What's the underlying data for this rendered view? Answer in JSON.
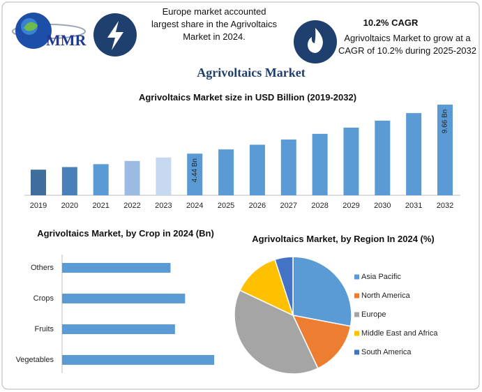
{
  "header": {
    "logo_text": "MMR",
    "info_left": "Europe market accounted largest share in the Agrivoltaics Market in 2024.",
    "info_right_title": "10.2% CAGR",
    "info_right_text": "Agrivoltaics Market to grow at a CAGR of 10.2% during 2025-2032",
    "title": "Agrivoltaics Market"
  },
  "chart_data": [
    {
      "type": "bar",
      "title": "Agrivoltaics Market size in USD Billion (2019-2032)",
      "categories": [
        "2019",
        "2020",
        "2021",
        "2022",
        "2023",
        "2024",
        "2025",
        "2026",
        "2027",
        "2028",
        "2029",
        "2030",
        "2031",
        "2032"
      ],
      "values": [
        2.73,
        3.01,
        3.32,
        3.66,
        4.03,
        4.44,
        4.89,
        5.39,
        5.94,
        6.55,
        7.21,
        7.95,
        8.76,
        9.66
      ],
      "value_labels": [
        null,
        null,
        null,
        null,
        null,
        "4.44 Bn",
        null,
        null,
        null,
        null,
        null,
        null,
        null,
        "9.66 Bn"
      ],
      "colors": [
        "#3e6e9c",
        "#4a80b9",
        "#5b9bd5",
        "#9bbbe3",
        "#c6d9f0",
        "#5b9bd5",
        "#5b9bd5",
        "#5b9bd5",
        "#5b9bd5",
        "#5b9bd5",
        "#5b9bd5",
        "#5b9bd5",
        "#5b9bd5",
        "#5b9bd5"
      ]
    },
    {
      "type": "hbar",
      "title": "Agrivoltaics Market, by Crop in 2024 (Bn)",
      "categories": [
        "Others",
        "Crops",
        "Fruits",
        "Vegetables"
      ],
      "values": [
        0.97,
        1.1,
        1.01,
        1.36
      ],
      "color": "#5b9bd5"
    },
    {
      "type": "pie",
      "title": "Agrivoltaics Market, by Region In 2024 (%)",
      "categories": [
        "Asia Pacific",
        "North America",
        "Europe",
        "Middle East and Africa",
        "South America"
      ],
      "values": [
        28,
        15,
        39,
        13,
        5
      ],
      "colors": [
        "#5b9bd5",
        "#ed7d31",
        "#a5a5a5",
        "#ffc000",
        "#4472c4"
      ],
      "legend": "right"
    }
  ]
}
